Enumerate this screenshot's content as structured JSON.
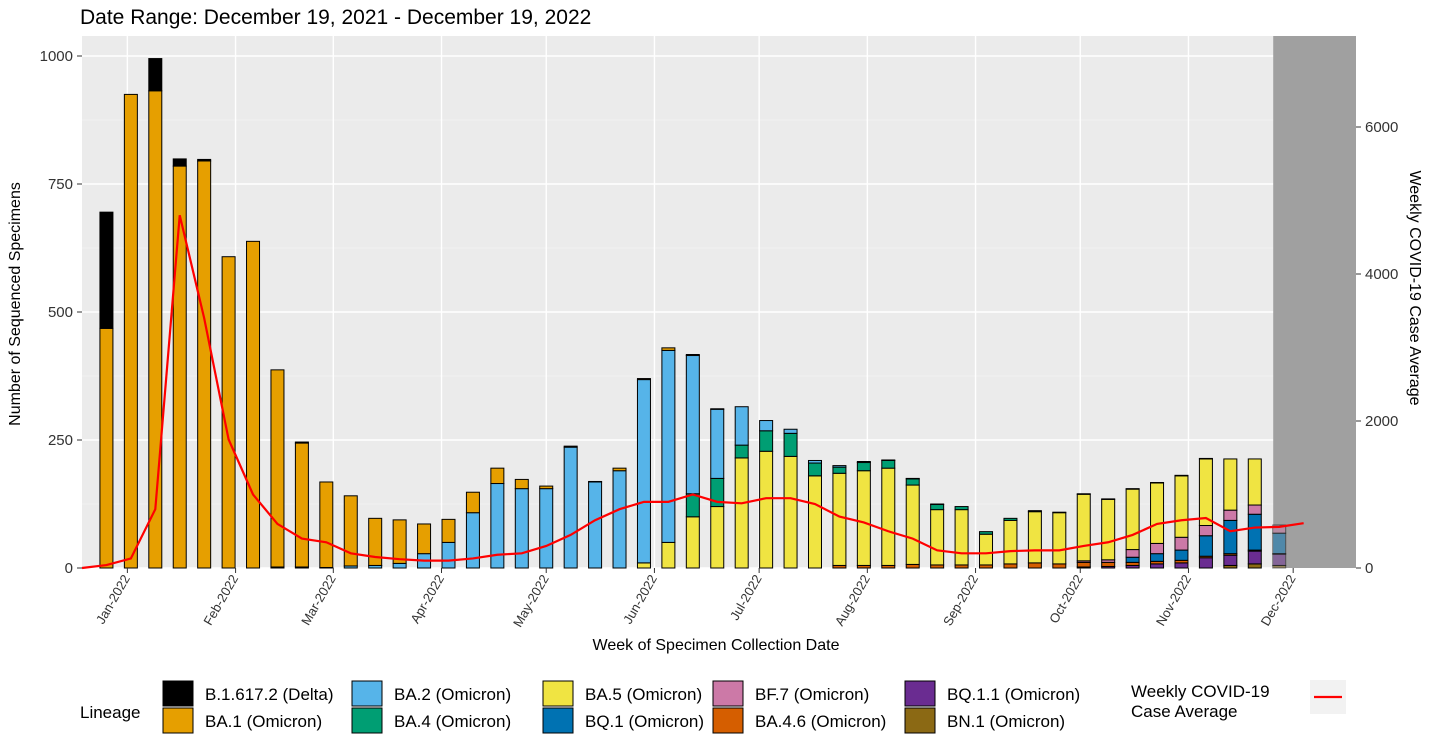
{
  "chart_data": {
    "type": "bar",
    "title": "Date Range: December 19, 2021 - December 19, 2022",
    "xlabel": "Week of Specimen Collection Date",
    "ylabel": "Number of Sequenced Specimens",
    "y2label": "Weekly COVID-19 Case Average",
    "stacked": true,
    "ylim": [
      0,
      1000
    ],
    "y2lim": [
      0,
      7000
    ],
    "yticks": [
      "0",
      "250",
      "500",
      "750",
      "1000"
    ],
    "y2ticks": [
      "0",
      "2000",
      "4000",
      "6000"
    ],
    "months": [
      "Jan-2022",
      "Feb-2022",
      "Mar-2022",
      "Apr-2022",
      "May-2022",
      "Jun-2022",
      "Jul-2022",
      "Aug-2022",
      "Sep-2022",
      "Oct-2022",
      "Nov-2022",
      "Dec-2022"
    ],
    "x": [
      "2021-12-26",
      "2022-01-02",
      "2022-01-09",
      "2022-01-16",
      "2022-01-23",
      "2022-01-30",
      "2022-02-06",
      "2022-02-13",
      "2022-02-20",
      "2022-02-27",
      "2022-03-06",
      "2022-03-13",
      "2022-03-20",
      "2022-03-27",
      "2022-04-03",
      "2022-04-10",
      "2022-04-17",
      "2022-04-24",
      "2022-05-01",
      "2022-05-08",
      "2022-05-15",
      "2022-05-22",
      "2022-05-29",
      "2022-06-05",
      "2022-06-12",
      "2022-06-19",
      "2022-06-26",
      "2022-07-03",
      "2022-07-10",
      "2022-07-17",
      "2022-07-24",
      "2022-07-31",
      "2022-08-07",
      "2022-08-14",
      "2022-08-21",
      "2022-08-28",
      "2022-09-04",
      "2022-09-11",
      "2022-09-18",
      "2022-09-25",
      "2022-10-02",
      "2022-10-09",
      "2022-10-16",
      "2022-10-23",
      "2022-10-30",
      "2022-11-06",
      "2022-11-13",
      "2022-11-20",
      "2022-11-27"
    ],
    "series": [
      {
        "name": "B.1.617.2 (Delta)",
        "color": "#000000",
        "values": [
          227,
          0,
          63,
          14,
          3,
          0,
          0,
          0,
          2,
          0,
          0,
          0,
          0,
          0,
          0,
          0,
          0,
          0,
          0,
          0,
          0,
          0,
          0,
          0,
          0,
          0,
          0,
          0,
          0,
          0,
          0,
          0,
          0,
          0,
          0,
          0,
          0,
          0,
          0,
          0,
          0,
          0,
          0,
          0,
          0,
          0,
          0,
          0,
          0
        ]
      },
      {
        "name": "BA.1 (Omicron)",
        "color": "#E69F00",
        "values": [
          468,
          925,
          932,
          785,
          795,
          608,
          638,
          385,
          242,
          167,
          137,
          92,
          85,
          58,
          45,
          40,
          30,
          18,
          5,
          2,
          1,
          5,
          2,
          5,
          2,
          1,
          0,
          0,
          0,
          0,
          0,
          0,
          0,
          0,
          0,
          0,
          0,
          0,
          0,
          0,
          0,
          0,
          0,
          0,
          0,
          0,
          0,
          0,
          0
        ]
      },
      {
        "name": "BA.2 (Omicron)",
        "color": "#56B4E9",
        "values": [
          0,
          0,
          0,
          0,
          0,
          0,
          0,
          2,
          2,
          1,
          4,
          5,
          9,
          28,
          50,
          108,
          165,
          155,
          155,
          236,
          168,
          190,
          358,
          375,
          270,
          135,
          75,
          20,
          8,
          5,
          3,
          2,
          1,
          1,
          1,
          0,
          0,
          0,
          0,
          0,
          0,
          0,
          0,
          0,
          0,
          0,
          0,
          0,
          0
        ]
      },
      {
        "name": "BA.4 (Omicron)",
        "color": "#009E73",
        "values": [
          0,
          0,
          0,
          0,
          0,
          0,
          0,
          0,
          0,
          0,
          0,
          0,
          0,
          0,
          0,
          0,
          0,
          0,
          0,
          0,
          0,
          0,
          0,
          0,
          45,
          55,
          25,
          40,
          45,
          25,
          12,
          16,
          15,
          12,
          10,
          6,
          5,
          4,
          2,
          1,
          1,
          1,
          1,
          1,
          1,
          1,
          0,
          0,
          0
        ]
      },
      {
        "name": "BA.5 (Omicron)",
        "color": "#F0E442",
        "values": [
          0,
          0,
          0,
          0,
          0,
          0,
          0,
          0,
          0,
          0,
          0,
          0,
          0,
          0,
          0,
          0,
          0,
          0,
          0,
          0,
          0,
          0,
          10,
          50,
          100,
          120,
          215,
          228,
          218,
          180,
          180,
          185,
          190,
          155,
          108,
          108,
          60,
          85,
          100,
          100,
          130,
          118,
          118,
          118,
          120,
          130,
          100,
          90,
          0
        ]
      },
      {
        "name": "BF.7 (Omicron)",
        "color": "#CC79A7",
        "values": [
          0,
          0,
          0,
          0,
          0,
          0,
          0,
          0,
          0,
          0,
          0,
          0,
          0,
          0,
          0,
          0,
          0,
          0,
          0,
          0,
          0,
          0,
          0,
          0,
          0,
          0,
          0,
          0,
          0,
          0,
          0,
          0,
          0,
          0,
          0,
          0,
          0,
          0,
          0,
          0,
          3,
          5,
          15,
          20,
          25,
          20,
          20,
          18,
          16
        ]
      },
      {
        "name": "BQ.1 (Omicron)",
        "color": "#0072B2",
        "values": [
          0,
          0,
          0,
          0,
          0,
          0,
          0,
          0,
          0,
          0,
          0,
          0,
          0,
          0,
          0,
          0,
          0,
          0,
          0,
          0,
          0,
          0,
          0,
          0,
          0,
          0,
          0,
          0,
          0,
          0,
          0,
          0,
          0,
          0,
          0,
          0,
          0,
          0,
          0,
          0,
          0,
          0,
          10,
          15,
          20,
          40,
          65,
          70,
          40
        ]
      },
      {
        "name": "BA.4.6 (Omicron)",
        "color": "#D55E00",
        "values": [
          0,
          0,
          0,
          0,
          0,
          0,
          0,
          0,
          0,
          0,
          0,
          0,
          0,
          0,
          0,
          0,
          0,
          0,
          0,
          0,
          0,
          0,
          0,
          0,
          0,
          0,
          0,
          0,
          0,
          0,
          5,
          5,
          5,
          7,
          6,
          6,
          6,
          8,
          10,
          8,
          9,
          8,
          6,
          5,
          5,
          3,
          3,
          2,
          1
        ]
      },
      {
        "name": "BQ.1.1 (Omicron)",
        "color": "#6A2C91",
        "values": [
          0,
          0,
          0,
          0,
          0,
          0,
          0,
          0,
          0,
          0,
          0,
          0,
          0,
          0,
          0,
          0,
          0,
          0,
          0,
          0,
          0,
          0,
          0,
          0,
          0,
          0,
          0,
          0,
          0,
          0,
          0,
          0,
          0,
          0,
          0,
          0,
          0,
          0,
          0,
          0,
          2,
          3,
          5,
          8,
          10,
          20,
          20,
          25,
          22
        ]
      },
      {
        "name": "BN.1 (Omicron)",
        "color": "#8B6914",
        "values": [
          0,
          0,
          0,
          0,
          0,
          0,
          0,
          0,
          0,
          0,
          0,
          0,
          0,
          0,
          0,
          0,
          0,
          0,
          0,
          0,
          0,
          0,
          0,
          0,
          0,
          0,
          0,
          0,
          0,
          0,
          0,
          0,
          0,
          0,
          0,
          0,
          0,
          0,
          0,
          0,
          0,
          0,
          0,
          0,
          0,
          0,
          5,
          8,
          5
        ]
      }
    ],
    "line": {
      "name": "Weekly COVID-19 Case Average",
      "color": "#FF0000",
      "x": [
        "2021-12-19",
        "2021-12-26",
        "2022-01-02",
        "2022-01-09",
        "2022-01-16",
        "2022-01-23",
        "2022-01-30",
        "2022-02-06",
        "2022-02-13",
        "2022-02-20",
        "2022-02-27",
        "2022-03-06",
        "2022-03-13",
        "2022-03-20",
        "2022-03-27",
        "2022-04-03",
        "2022-04-10",
        "2022-04-17",
        "2022-04-24",
        "2022-05-01",
        "2022-05-08",
        "2022-05-15",
        "2022-05-22",
        "2022-05-29",
        "2022-06-05",
        "2022-06-12",
        "2022-06-19",
        "2022-06-26",
        "2022-07-03",
        "2022-07-10",
        "2022-07-17",
        "2022-07-24",
        "2022-07-31",
        "2022-08-07",
        "2022-08-14",
        "2022-08-21",
        "2022-08-28",
        "2022-09-04",
        "2022-09-11",
        "2022-09-18",
        "2022-09-25",
        "2022-10-02",
        "2022-10-09",
        "2022-10-16",
        "2022-10-23",
        "2022-10-30",
        "2022-11-06",
        "2022-11-13",
        "2022-11-20",
        "2022-11-27",
        "2022-12-04"
      ],
      "values": [
        0,
        40,
        130,
        800,
        4800,
        3400,
        1750,
        1000,
        600,
        400,
        350,
        200,
        150,
        120,
        100,
        100,
        130,
        180,
        200,
        300,
        450,
        650,
        800,
        900,
        900,
        1000,
        900,
        880,
        950,
        950,
        870,
        700,
        620,
        500,
        400,
        240,
        200,
        200,
        230,
        240,
        240,
        300,
        350,
        450,
        600,
        650,
        680,
        500,
        550,
        560,
        610
      ]
    },
    "shaded_region": {
      "start": "2022-11-27",
      "end": "2022-12-19"
    },
    "legend": {
      "title": "Lineage",
      "position": "bottom",
      "line_label": [
        "Weekly COVID-19",
        "Case Average"
      ]
    }
  }
}
